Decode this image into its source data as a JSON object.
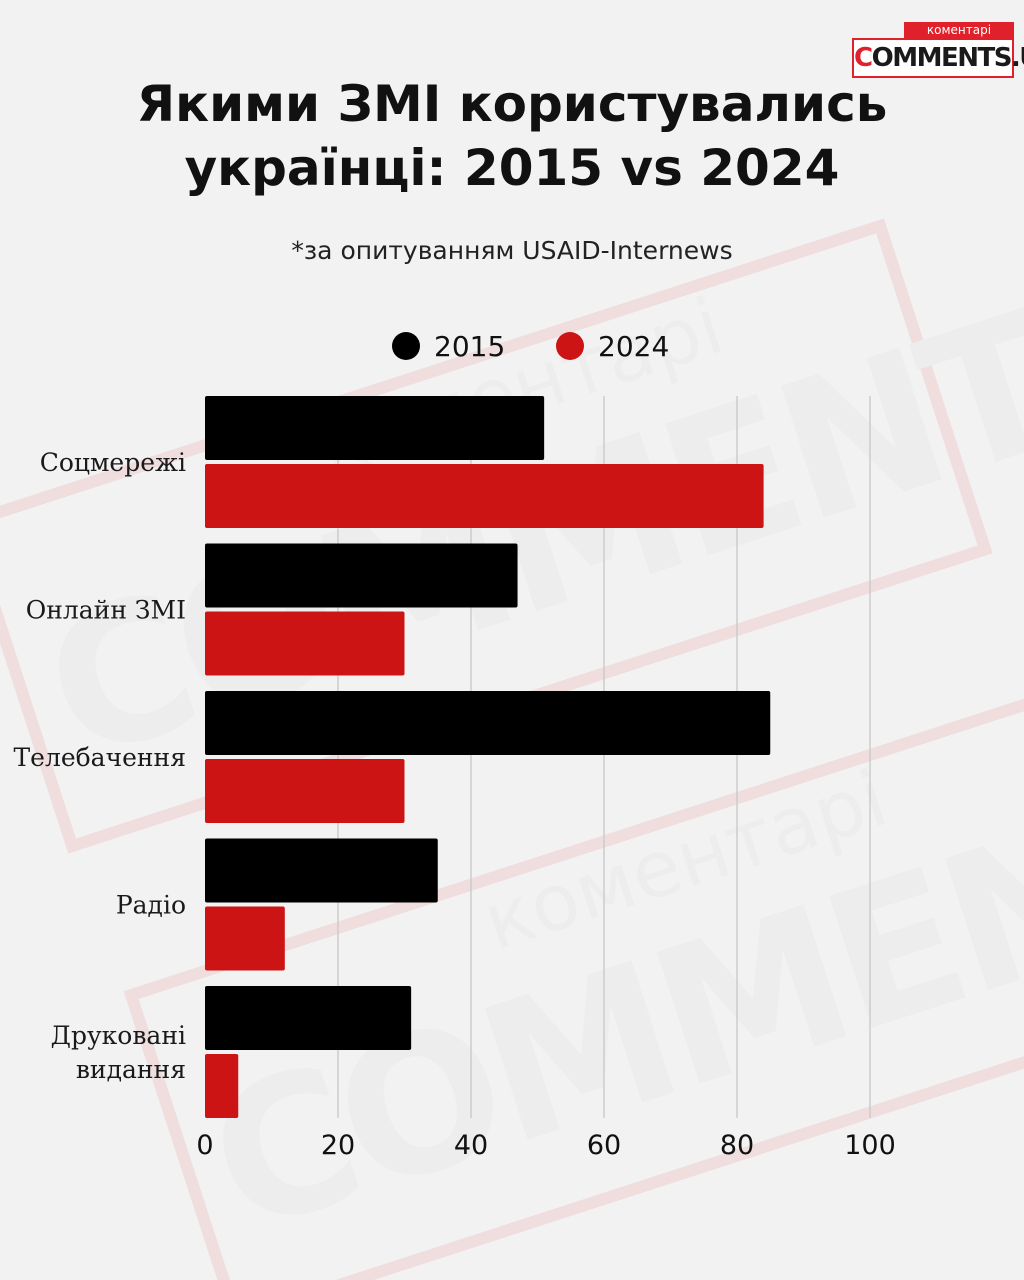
{
  "logo": {
    "tag": "коментарі",
    "word_first": "C",
    "word_rest": "OMMENTS.UA"
  },
  "watermark": {
    "word": "COMMENTS.UA",
    "tag": "коментарі"
  },
  "colors": {
    "series_2015": "#000000",
    "series_2024": "#cc1414",
    "accent": "#e0202a",
    "grid": "#cccccc"
  },
  "chart_data": {
    "type": "bar",
    "orientation": "horizontal",
    "title": "Якими ЗМІ користувались українці: 2015 vs 2024",
    "title_lines": [
      "Якими ЗМІ користувались",
      "українці: 2015 vs 2024"
    ],
    "subtitle": "*за опитуванням USAID-Internews",
    "categories": [
      "Соцмережі",
      "Онлайн ЗМІ",
      "Телебачення",
      "Радіо",
      "Друковані видання"
    ],
    "category_lines": [
      [
        "Соцмережі"
      ],
      [
        "Онлайн ЗМІ"
      ],
      [
        "Телебачення"
      ],
      [
        "Радіо"
      ],
      [
        "Друковані",
        "видання"
      ]
    ],
    "series": [
      {
        "name": "2015",
        "values": [
          51,
          47,
          85,
          35,
          31
        ]
      },
      {
        "name": "2024",
        "values": [
          84,
          30,
          30,
          12,
          5
        ]
      }
    ],
    "xlim": [
      0,
      100
    ],
    "xticks": [
      0,
      20,
      40,
      60,
      80,
      100
    ],
    "xlabel": "",
    "ylabel": "",
    "grid": true,
    "legend_position": "top-center"
  }
}
